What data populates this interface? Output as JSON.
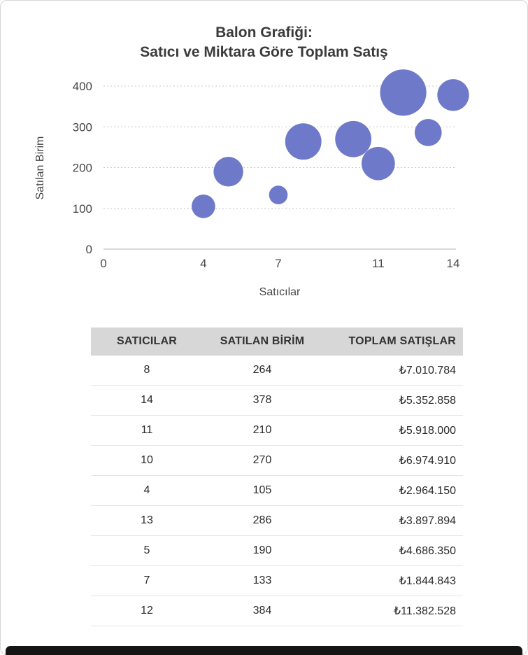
{
  "chart_data": {
    "type": "scatter",
    "variant": "bubble",
    "title": "Balon Grafiği: Satıcı ve Miktara Göre Toplam Satış",
    "title_lines": [
      "Balon Grafiği:",
      "Satıcı ve Miktara Göre Toplam Satış"
    ],
    "xlabel": "Satıcılar",
    "ylabel": "Satılan Birim",
    "xlim": [
      0,
      14
    ],
    "ylim": [
      0,
      400
    ],
    "x_ticks": [
      0,
      4,
      7,
      11,
      14
    ],
    "y_ticks": [
      0,
      100,
      200,
      300,
      400
    ],
    "grid": "dotted-horizontal",
    "legend": "none",
    "bubble_color": "#6e79c9",
    "size_encoding": "TOPLAM SATIŞLAR",
    "points": [
      {
        "x": 8,
        "y": 264,
        "size": 7010784
      },
      {
        "x": 14,
        "y": 378,
        "size": 5352858
      },
      {
        "x": 11,
        "y": 210,
        "size": 5918000
      },
      {
        "x": 10,
        "y": 270,
        "size": 6974910
      },
      {
        "x": 4,
        "y": 105,
        "size": 2964150
      },
      {
        "x": 13,
        "y": 286,
        "size": 3897894
      },
      {
        "x": 5,
        "y": 190,
        "size": 4686350
      },
      {
        "x": 7,
        "y": 133,
        "size": 1844843
      },
      {
        "x": 12,
        "y": 384,
        "size": 11382528
      }
    ]
  },
  "table": {
    "headers": [
      "SATICILAR",
      "SATILAN BİRİM",
      "TOPLAM SATIŞLAR"
    ],
    "rows": [
      [
        "8",
        "264",
        "₺7.010.784"
      ],
      [
        "14",
        "378",
        "₺5.352.858"
      ],
      [
        "11",
        "210",
        "₺5.918.000"
      ],
      [
        "10",
        "270",
        "₺6.974.910"
      ],
      [
        "4",
        "105",
        "₺2.964.150"
      ],
      [
        "13",
        "286",
        "₺3.897.894"
      ],
      [
        "5",
        "190",
        "₺4.686.350"
      ],
      [
        "7",
        "133",
        "₺1.844.843"
      ],
      [
        "12",
        "384",
        "₺11.382.528"
      ]
    ]
  }
}
